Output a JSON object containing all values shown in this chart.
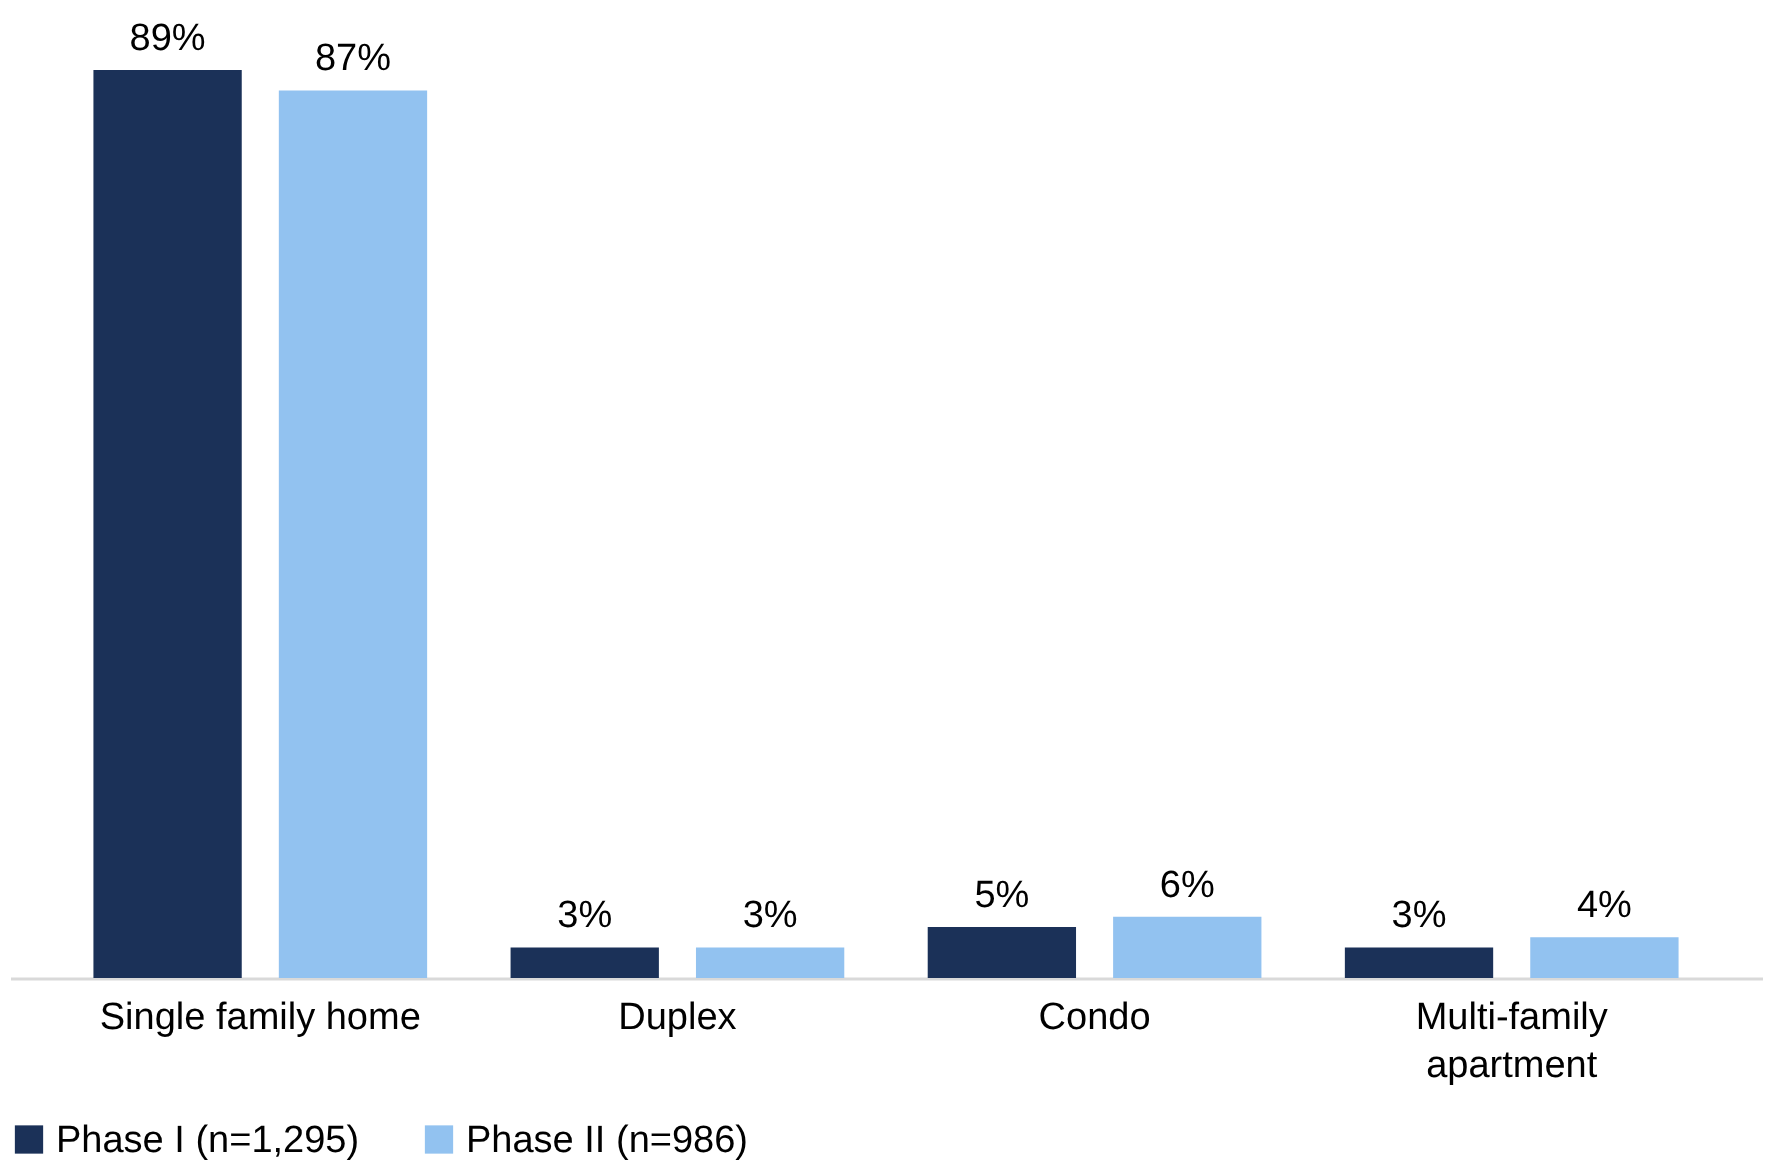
{
  "chart_data": {
    "type": "bar",
    "categories": [
      "Single family home",
      "Duplex",
      "Condo",
      "Multi-family apartment"
    ],
    "series": [
      {
        "name": "Phase I (n=1,295)",
        "color": "#1b3158",
        "values": [
          89,
          3,
          5,
          3
        ],
        "value_labels": [
          "89%",
          "3%",
          "5%",
          "3%"
        ]
      },
      {
        "name": "Phase II (n=986)",
        "color": "#92c2f0",
        "values": [
          87,
          3,
          6,
          4
        ],
        "value_labels": [
          "87%",
          "3%",
          "6%",
          "4%"
        ]
      }
    ],
    "legend": "bottom",
    "grid": false
  }
}
